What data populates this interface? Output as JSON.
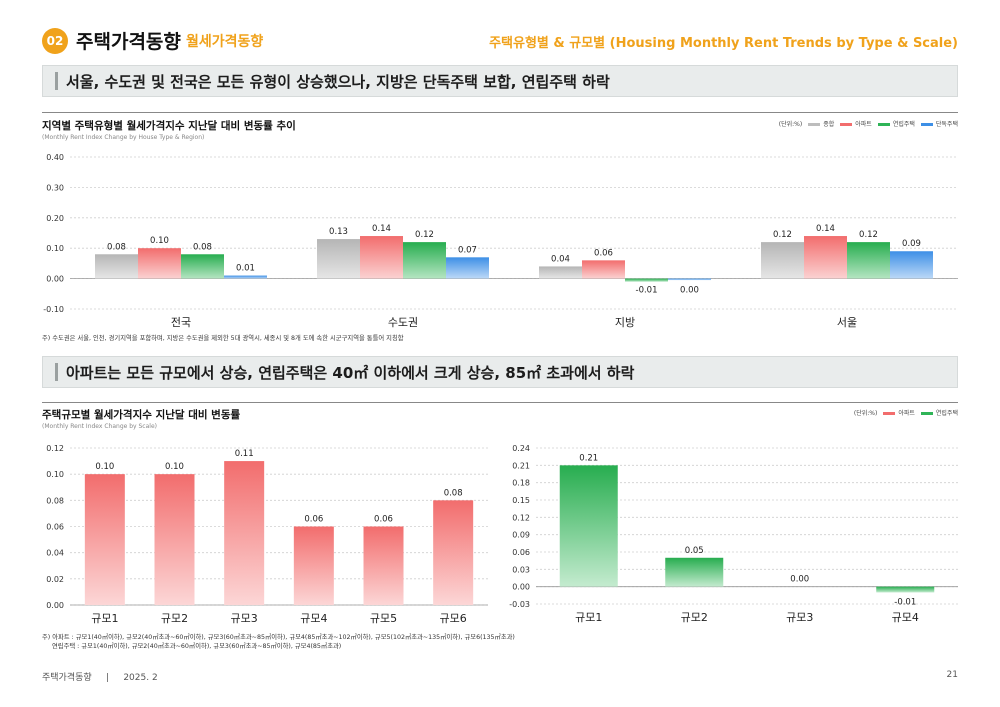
{
  "header": {
    "badge": "02",
    "title": "주택가격동향",
    "subtitle": "월세가격동향",
    "right_title": "주택유형별 & 규모별 (Housing Monthly Rent Trends by Type & Scale)"
  },
  "banner1": "서울, 수도권 및 전국은 모든 유형이 상승했으나, 지방은 단독주택 보합, 연립주택 하락",
  "banner2": "아파트는 모든 규모에서 상승, 연립주택은 40㎡ 이하에서 크게 상승, 85㎡ 초과에서 하락",
  "chart1_note": "주) 수도권은 서울, 인천, 경기지역을 포함하며, 지방은 수도권을 제외한 5대 광역시, 세종시 및 8개 도에 속한 시군구지역을 통틀어 지칭함",
  "chart2_note_line1": "주) 아파트 : 규모1(40㎡이하), 규모2(40㎡초과~60㎡이하), 규모3(60㎡초과~85㎡이하), 규모4(85㎡초과~102㎡이하), 규모5(102㎡초과~135㎡이하), 규모6(135㎡초과)",
  "chart2_note_line2": "연립주택 : 규모1(40㎡이하), 규모2(40㎡초과~60㎡이하), 규모3(60㎡초과~85㎡이하), 규모4(85㎡초과)",
  "footer": {
    "left": "주택가격동향     |     2025. 2",
    "page": "21"
  },
  "colors": {
    "accent": "#f0a21b",
    "total": "#bdbdbd",
    "apt": "#f26d6d",
    "row": "#2fb457",
    "detached": "#3d8fe6"
  },
  "chart_data": [
    {
      "type": "bar",
      "title": "지역별 주택유형별 월세가격지수 지난달 대비 변동률 추이",
      "subtitle": "(Monthly Rent Index Change by House Type & Region)",
      "unit": "(단위:%)",
      "categories": [
        "전국",
        "수도권",
        "지방",
        "서울"
      ],
      "series": [
        {
          "name": "종합",
          "values": [
            0.08,
            0.13,
            0.04,
            0.12
          ],
          "labels": [
            "0.08",
            "0.13",
            "0.04",
            "0.12"
          ]
        },
        {
          "name": "아파트",
          "values": [
            0.1,
            0.14,
            0.06,
            0.14
          ],
          "labels": [
            "0.10",
            "0.14",
            "0.06",
            "0.14"
          ]
        },
        {
          "name": "연립주택",
          "values": [
            0.08,
            0.12,
            -0.01,
            0.12
          ],
          "labels": [
            "0.08",
            "0.12",
            "-0.01",
            "0.12"
          ]
        },
        {
          "name": "단독주택",
          "values": [
            0.01,
            0.07,
            0.0,
            0.09
          ],
          "labels": [
            "0.01",
            "0.07",
            "0.00",
            "0.09"
          ]
        }
      ],
      "ylim": [
        -0.1,
        0.4
      ],
      "yticks": [
        "0.40",
        "0.30",
        "0.20",
        "0.10",
        "0.00",
        "-0.10"
      ]
    },
    {
      "type": "bar",
      "title": "주택규모별 월세가격지수 지난달 대비 변동률",
      "subtitle": "(Monthly Rent Index Change by Scale)",
      "unit": "(단위:%)",
      "legend": [
        "아파트",
        "연립주택"
      ],
      "series_name": "아파트",
      "categories": [
        "규모1",
        "규모2",
        "규모3",
        "규모4",
        "규모5",
        "규모6"
      ],
      "values": [
        0.1,
        0.1,
        0.11,
        0.06,
        0.06,
        0.08
      ],
      "labels": [
        "0.10",
        "0.10",
        "0.11",
        "0.06",
        "0.06",
        "0.08"
      ],
      "ylim": [
        0.0,
        0.12
      ],
      "yticks": [
        "0.12",
        "0.10",
        "0.08",
        "0.06",
        "0.04",
        "0.02",
        "0.00"
      ]
    },
    {
      "type": "bar",
      "series_name": "연립주택",
      "categories": [
        "규모1",
        "규모2",
        "규모3",
        "규모4"
      ],
      "values": [
        0.21,
        0.05,
        0.0,
        -0.01
      ],
      "labels": [
        "0.21",
        "0.05",
        "0.00",
        "-0.01"
      ],
      "ylim": [
        -0.03,
        0.24
      ],
      "yticks": [
        "0.24",
        "0.21",
        "0.18",
        "0.15",
        "0.12",
        "0.09",
        "0.06",
        "0.03",
        "0.00",
        "-0.03"
      ]
    }
  ]
}
